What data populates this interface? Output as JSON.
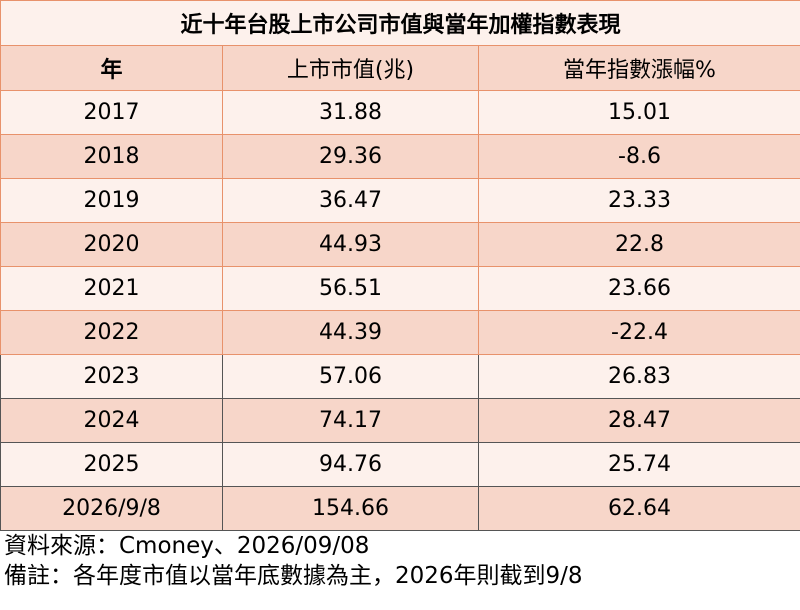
{
  "table": {
    "title": "近十年台股上市公司市值與當年加權指數表現",
    "headers": [
      "年",
      "上市市值(兆)",
      "當年指數漲幅%"
    ],
    "rows": [
      {
        "year": "2017",
        "market_cap": "31.88",
        "index_change": "15.01"
      },
      {
        "year": "2018",
        "market_cap": "29.36",
        "index_change": "-8.6"
      },
      {
        "year": "2019",
        "market_cap": "36.47",
        "index_change": "23.33"
      },
      {
        "year": "2020",
        "market_cap": "44.93",
        "index_change": "22.8"
      },
      {
        "year": "2021",
        "market_cap": "56.51",
        "index_change": "23.66"
      },
      {
        "year": "2022",
        "market_cap": "44.39",
        "index_change": "-22.4"
      },
      {
        "year": "2023",
        "market_cap": "57.06",
        "index_change": "26.83"
      },
      {
        "year": "2024",
        "market_cap": "74.17",
        "index_change": "28.47"
      },
      {
        "year": "2025",
        "market_cap": "94.76",
        "index_change": "25.74"
      },
      {
        "year": "2026/9/8",
        "market_cap": "154.66",
        "index_change": "62.64"
      }
    ]
  },
  "footer": {
    "source": "資料來源：Cmoney、2026/09/08",
    "note": "備註：各年度市值以當年底數據為主，2026年則截到9/8"
  },
  "colors": {
    "border": "#e8926b",
    "light_row": "#fdf1ec",
    "dark_row": "#f7d6c9"
  }
}
